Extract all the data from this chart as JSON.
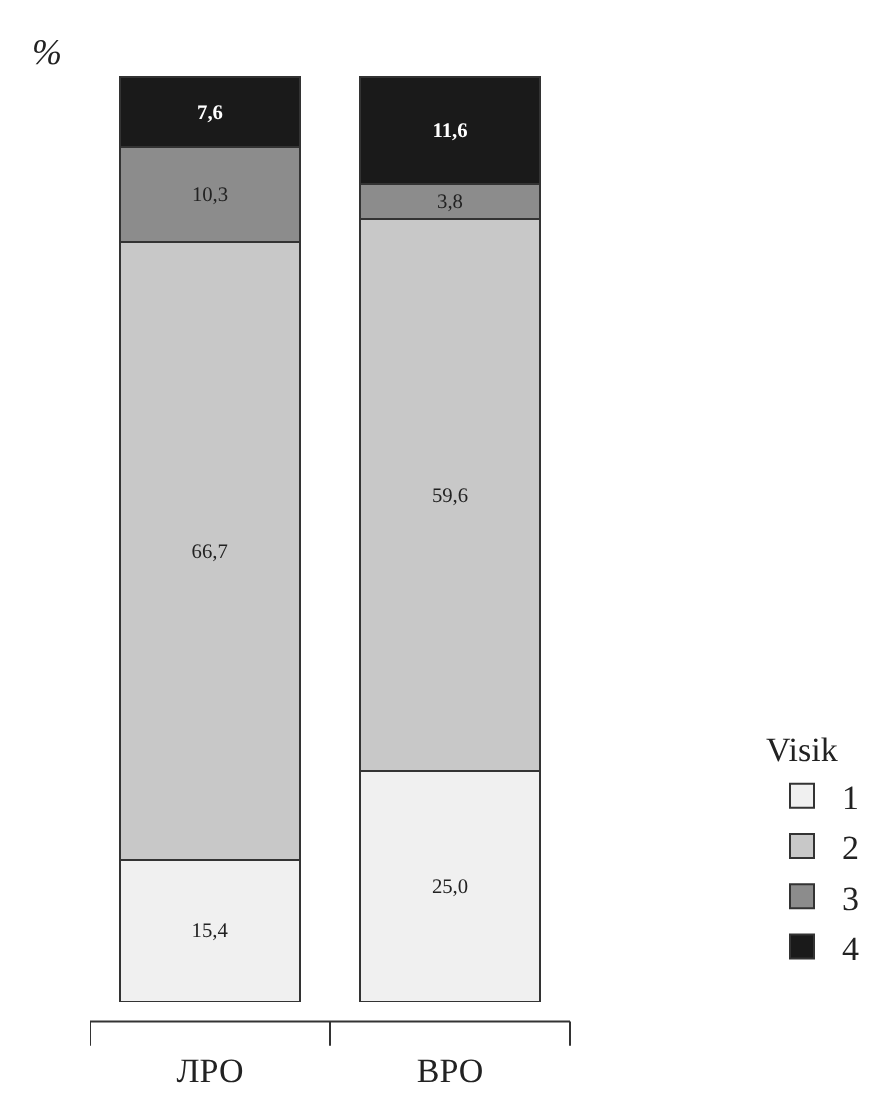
{
  "chart_data": {
    "type": "bar",
    "stacked": true,
    "ylabel": "%",
    "legend_title": "Visik",
    "legend": "right",
    "categories": [
      "ЛРО",
      "ВРО"
    ],
    "series": [
      {
        "name": "1",
        "color": "#f0f0f0",
        "values": [
          15.4,
          25.0
        ],
        "value_labels": [
          "15,4",
          "25,0"
        ]
      },
      {
        "name": "2",
        "color": "#c8c8c8",
        "values": [
          66.7,
          59.6
        ],
        "value_labels": [
          "66,7",
          "59,6"
        ]
      },
      {
        "name": "3",
        "color": "#8c8c8c",
        "values": [
          10.3,
          3.8
        ],
        "value_labels": [
          "10,3",
          "3,8"
        ]
      },
      {
        "name": "4",
        "color": "#1a1a1a",
        "values": [
          7.6,
          11.6
        ],
        "value_labels": [
          "7,6",
          "11,6"
        ]
      }
    ],
    "tick_labels": "x"
  }
}
